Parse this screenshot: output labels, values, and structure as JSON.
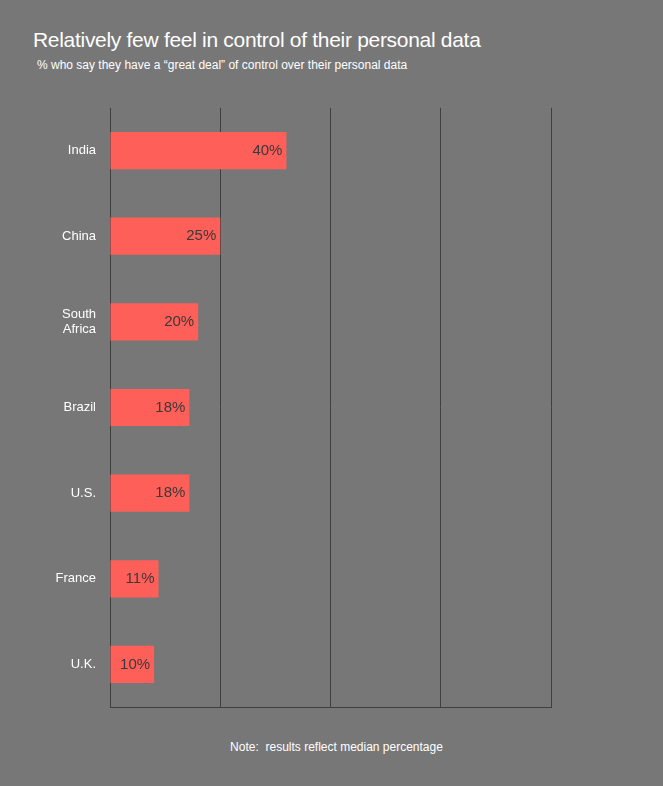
{
  "chart_data": {
    "type": "bar",
    "title": "Relatively few feel in control of their personal data",
    "subtitle": "% who say they have  a “great deal” of control over their personal data",
    "note": "Note:  results reflect median percentage",
    "orientation": "horizontal",
    "categories": [
      "India",
      "China",
      "South Africa",
      "Brazil",
      "U.S.",
      "France",
      "U.K."
    ],
    "values": [
      40,
      25,
      20,
      18,
      18,
      11,
      10
    ],
    "value_labels": [
      "40%",
      "25%",
      "20%",
      "18%",
      "18%",
      "11%",
      "10%"
    ],
    "data_labels": true,
    "color": "#fe5f59",
    "xlim": [
      0,
      100
    ],
    "xticks": [
      0,
      25,
      50,
      75,
      100
    ],
    "grid": true,
    "tick_labels": "y"
  }
}
